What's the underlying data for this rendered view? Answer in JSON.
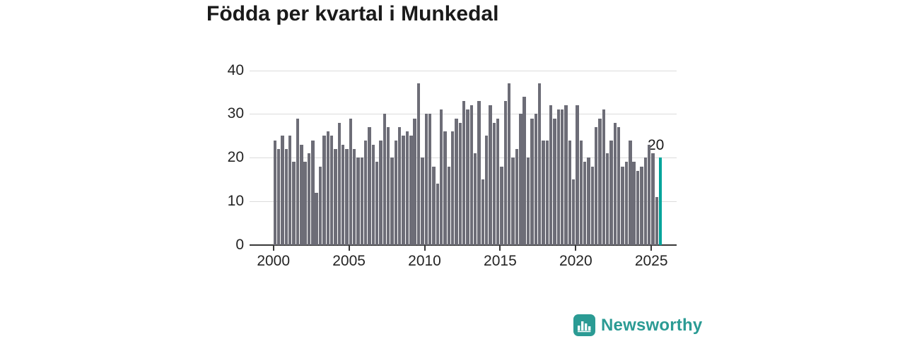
{
  "title": "Födda per kvartal i Munkedal",
  "branding": {
    "name": "Newsworthy",
    "icon": "bar-chart-logo-icon"
  },
  "colors": {
    "bar": "#6d6d77",
    "bar_highlight": "#00a49a",
    "gridline": "#dcdcdc",
    "axis": "#383838",
    "text": "#1a1a1a",
    "logo_teal": "#2b9b94"
  },
  "chart_data": {
    "type": "bar",
    "title": "Födda per kvartal i Munkedal",
    "xlabel": "",
    "ylabel": "",
    "ylim": [
      0,
      40
    ],
    "grid": true,
    "x_unit": "quarter",
    "start_period": "2000 Q1",
    "end_period": "2025 Q3",
    "x_tick_labels": [
      "2000",
      "2005",
      "2010",
      "2015",
      "2020",
      "2025"
    ],
    "x_tick_years": [
      2000,
      2005,
      2010,
      2015,
      2020,
      2025
    ],
    "y_tick_labels": [
      "0",
      "10",
      "20",
      "30",
      "40"
    ],
    "y_tick_values": [
      0,
      10,
      20,
      30,
      40
    ],
    "values": [
      24,
      22,
      25,
      22,
      25,
      19,
      29,
      23,
      19,
      21,
      24,
      12,
      18,
      25,
      26,
      25,
      22,
      28,
      23,
      22,
      29,
      22,
      20,
      20,
      24,
      27,
      23,
      19,
      24,
      30,
      27,
      20,
      24,
      27,
      25,
      26,
      25,
      29,
      37,
      20,
      30,
      30,
      18,
      14,
      31,
      26,
      18,
      26,
      29,
      28,
      33,
      31,
      32,
      21,
      33,
      15,
      25,
      32,
      28,
      29,
      18,
      33,
      37,
      20,
      22,
      30,
      34,
      20,
      29,
      30,
      37,
      24,
      24,
      32,
      29,
      31,
      31,
      32,
      24,
      15,
      32,
      24,
      19,
      20,
      18,
      27,
      29,
      31,
      21,
      24,
      28,
      27,
      18,
      19,
      24,
      19,
      17,
      18,
      20,
      23,
      21,
      11,
      20
    ],
    "highlight_last_bar": true,
    "last_value_label": "20"
  }
}
